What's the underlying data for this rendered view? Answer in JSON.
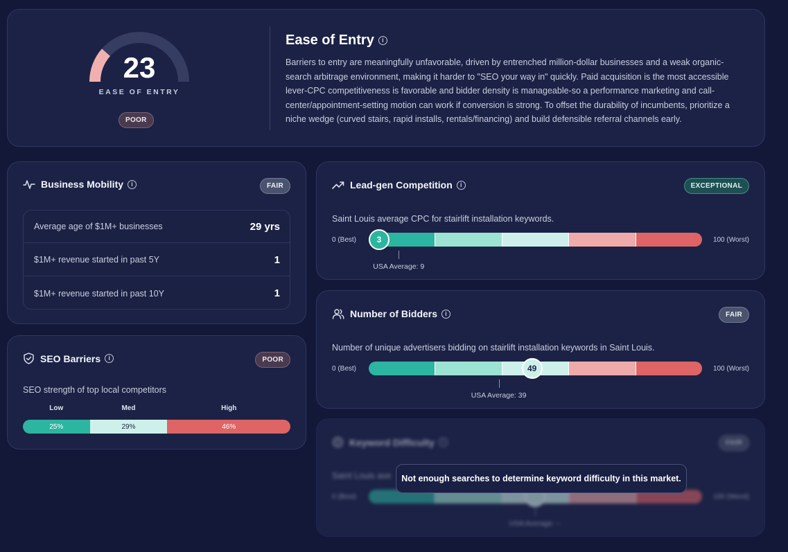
{
  "ease": {
    "score": "23",
    "score_value": 23,
    "label": "EASE OF ENTRY",
    "badge": "POOR",
    "title": "Ease of Entry",
    "description": "Barriers to entry are meaningfully unfavorable, driven by entrenched million-dollar businesses and a weak organic-search arbitrage environment, making it harder to \"SEO your way in\" quickly. Paid acquisition is the most accessible lever-CPC competitiveness is favorable and bidder density is manageable-so a performance marketing and call-center/appointment-setting motion can work if conversion is strong. To offset the durability of incumbents, prioritize a niche wedge (curved stairs, rapid installs, rentals/financing) and build defensible referral channels early."
  },
  "mobility": {
    "title": "Business Mobility",
    "badge": "FAIR",
    "rows": [
      {
        "label": "Average age of $1M+ businesses",
        "value": "29 yrs"
      },
      {
        "label": "$1M+ revenue started in past 5Y",
        "value": "1"
      },
      {
        "label": "$1M+ revenue started in past 10Y",
        "value": "1"
      }
    ]
  },
  "seo": {
    "title": "SEO Barriers",
    "badge": "POOR",
    "subtitle": "SEO strength of top local competitors",
    "segments": [
      {
        "label": "Low",
        "value": "25%",
        "pct": 25,
        "color": "#2cb5a0"
      },
      {
        "label": "Med",
        "value": "29%",
        "pct": 29,
        "color": "#cdf1ea"
      },
      {
        "label": "High",
        "value": "46%",
        "pct": 46,
        "color": "#de6466"
      }
    ]
  },
  "leadgen": {
    "title": "Lead-gen Competition",
    "badge": "EXCEPTIONAL",
    "description": "Saint Louis average CPC for stairlift installation keywords.",
    "best_label": "0 (Best)",
    "worst_label": "100 (Worst)",
    "value": "3",
    "value_num": 3,
    "avg_label": "USA Average: 9",
    "avg_num": 9
  },
  "bidders": {
    "title": "Number of Bidders",
    "badge": "FAIR",
    "description": "Number of unique advertisers bidding on stairlift installation keywords in Saint Louis.",
    "best_label": "0 (Best)",
    "worst_label": "100 (Worst)",
    "value": "49",
    "value_num": 49,
    "avg_label": "USA Average: 39",
    "avg_num": 39
  },
  "keyword": {
    "title": "Keyword Difficulty",
    "badge": "FAIR",
    "description": "Saint Louis ave",
    "best_label": "0 (Best)",
    "worst_label": "100 (Worst)",
    "avg_label": "USA Average: --",
    "overlay": "Not enough searches to determine keyword difficulty in this market."
  }
}
